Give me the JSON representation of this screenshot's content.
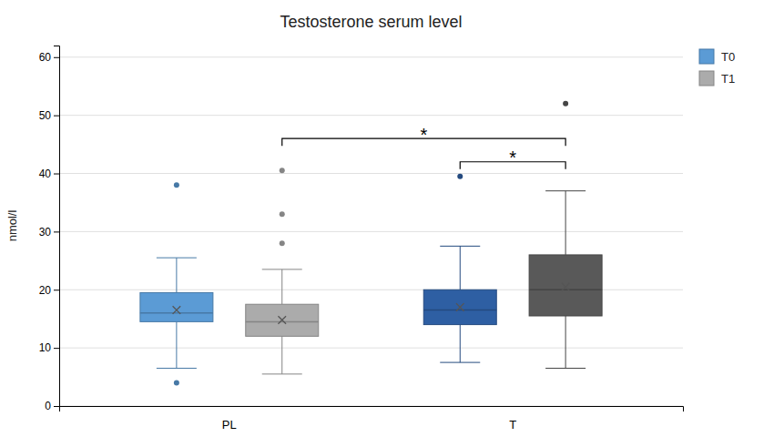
{
  "chart_data": {
    "type": "box",
    "title": "Testosterone serum level",
    "ylabel": "nmol/l",
    "categories": [
      "PL",
      "T"
    ],
    "ylim": [
      0,
      62
    ],
    "yticks": [
      0,
      10,
      20,
      30,
      40,
      50,
      60
    ],
    "grid": true,
    "legend": "upper right",
    "series": [
      {
        "name": "T0",
        "color": "#5B9BD5",
        "colors": [
          "#5B9BD5",
          "#2E5FA3"
        ],
        "q1": [
          14.5,
          14.0
        ],
        "median": [
          16.0,
          16.5
        ],
        "q3": [
          19.5,
          20.0
        ],
        "mean": [
          16.5,
          17.0
        ],
        "whisker_low": [
          6.5,
          7.5
        ],
        "whisker_high": [
          25.5,
          27.5
        ],
        "outliers": [
          [
            4.0,
            38.0
          ],
          [
            39.5
          ]
        ]
      },
      {
        "name": "T1",
        "color": "#ABABAB",
        "colors": [
          "#ABABAB",
          "#595959"
        ],
        "q1": [
          12.0,
          15.5
        ],
        "median": [
          14.5,
          20.0
        ],
        "q3": [
          17.5,
          26.0
        ],
        "mean": [
          14.8,
          20.5
        ],
        "whisker_low": [
          5.5,
          6.5
        ],
        "whisker_high": [
          23.5,
          37.0
        ],
        "outliers": [
          [
            28.0,
            33.0,
            40.5
          ],
          [
            52.0
          ]
        ]
      }
    ],
    "annotations": [
      {
        "type": "bracket",
        "text": "*",
        "y": 46.0,
        "text_y": 47.2,
        "from": {
          "category": "PL",
          "series": "T1"
        },
        "to": {
          "category": "T",
          "series": "T1"
        }
      },
      {
        "type": "bracket",
        "text": "*",
        "y": 42.0,
        "text_y": 43.2,
        "from": {
          "category": "T",
          "series": "T0"
        },
        "to": {
          "category": "T",
          "series": "T1"
        }
      }
    ]
  }
}
